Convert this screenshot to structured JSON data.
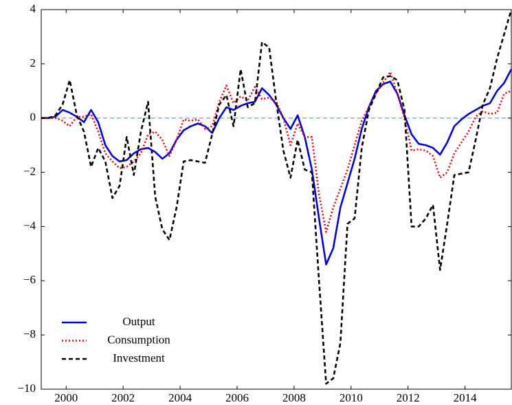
{
  "chart_data": {
    "type": "line",
    "x": [
      1999.125,
      1999.375,
      1999.625,
      1999.875,
      2000.125,
      2000.375,
      2000.625,
      2000.875,
      2001.125,
      2001.375,
      2001.625,
      2001.875,
      2002.125,
      2002.375,
      2002.625,
      2002.875,
      2003.125,
      2003.375,
      2003.625,
      2003.875,
      2004.125,
      2004.375,
      2004.625,
      2004.875,
      2005.125,
      2005.375,
      2005.625,
      2005.875,
      2006.125,
      2006.375,
      2006.625,
      2006.875,
      2007.125,
      2007.375,
      2007.625,
      2007.875,
      2008.125,
      2008.375,
      2008.625,
      2008.875,
      2009.125,
      2009.375,
      2009.625,
      2009.875,
      2010.125,
      2010.375,
      2010.625,
      2010.875,
      2011.125,
      2011.375,
      2011.625,
      2011.875,
      2012.125,
      2012.375,
      2012.625,
      2012.875,
      2013.125,
      2013.375,
      2013.625,
      2013.875,
      2014.125,
      2014.375,
      2014.625,
      2014.875,
      2015.125,
      2015.375,
      2015.625
    ],
    "series": [
      {
        "name": "Output",
        "color": "#0000ee",
        "style": "solid",
        "values": [
          0,
          0,
          0.05,
          0.3,
          0.2,
          0.05,
          -0.15,
          0.3,
          -0.15,
          -1.0,
          -1.4,
          -1.6,
          -1.55,
          -1.3,
          -1.15,
          -1.1,
          -1.25,
          -1.5,
          -1.3,
          -0.8,
          -0.45,
          -0.3,
          -0.2,
          -0.3,
          -0.55,
          0.0,
          0.4,
          0.3,
          0.45,
          0.55,
          0.6,
          1.1,
          0.85,
          0.5,
          0.0,
          -0.4,
          0.1,
          -0.7,
          -1.9,
          -3.7,
          -5.4,
          -4.8,
          -3.3,
          -2.4,
          -1.5,
          -0.4,
          0.4,
          1.0,
          1.25,
          1.35,
          0.9,
          0.1,
          -0.6,
          -0.95,
          -1.0,
          -1.1,
          -1.35,
          -0.9,
          -0.3,
          -0.05,
          0.15,
          0.3,
          0.45,
          0.55,
          1.0,
          1.3,
          1.8
        ]
      },
      {
        "name": "Consumption",
        "color": "#ee0000",
        "style": "dotted",
        "values": [
          0,
          0,
          0,
          -0.1,
          -0.3,
          0.05,
          0.05,
          0.15,
          -0.5,
          -1.3,
          -1.6,
          -1.85,
          -1.8,
          -1.6,
          -1.3,
          -0.6,
          -0.5,
          -0.8,
          -1.4,
          -0.8,
          -0.05,
          -0.1,
          -0.05,
          -0.4,
          -0.3,
          0.6,
          1.2,
          0.55,
          0.8,
          0.65,
          1.15,
          0.7,
          0.75,
          0.6,
          0.0,
          -1.0,
          -0.2,
          -0.7,
          -0.7,
          -2.8,
          -4.2,
          -3.3,
          -2.6,
          -1.9,
          -1.0,
          -0.1,
          0.4,
          0.9,
          1.3,
          1.7,
          0.9,
          0.0,
          -1.2,
          -1.15,
          -1.2,
          -1.4,
          -2.2,
          -2.0,
          -1.3,
          -0.9,
          -0.5,
          0.05,
          0.25,
          0.15,
          0.2,
          0.9,
          1.0
        ]
      },
      {
        "name": "Investment",
        "color": "#000000",
        "style": "dashed",
        "values": [
          0,
          0,
          0.1,
          0.5,
          1.4,
          0.1,
          -0.5,
          -1.8,
          -1.1,
          -1.6,
          -2.95,
          -2.5,
          -0.7,
          -2.1,
          -0.5,
          0.6,
          -2.9,
          -4.1,
          -4.5,
          -3.3,
          -1.6,
          -1.55,
          -1.6,
          -1.65,
          -0.6,
          0.5,
          0.85,
          -0.3,
          1.8,
          0.4,
          0.55,
          2.8,
          2.6,
          0.6,
          -1.2,
          -2.2,
          -0.8,
          -1.9,
          -2.0,
          -6.0,
          -9.8,
          -9.6,
          -8.3,
          -3.9,
          -3.7,
          -1.1,
          0.3,
          0.9,
          1.5,
          1.55,
          1.4,
          0.3,
          -4.0,
          -4.0,
          -3.7,
          -3.2,
          -5.6,
          -3.9,
          -2.1,
          -2.05,
          -2.0,
          -0.8,
          0.5,
          1.1,
          2.2,
          3.1,
          4.0
        ]
      }
    ],
    "xlim": [
      1999.125,
      2015.625
    ],
    "ylim": [
      -10,
      4
    ],
    "xticks": [
      2000,
      2002,
      2004,
      2006,
      2008,
      2010,
      2012,
      2014
    ],
    "yticks": [
      {
        "value": -10,
        "label": "−10"
      },
      {
        "value": -8,
        "label": "−8"
      },
      {
        "value": -6,
        "label": "−6"
      },
      {
        "value": -4,
        "label": "−4"
      },
      {
        "value": -2,
        "label": "−2"
      },
      0,
      2,
      4
    ],
    "reference_line": {
      "value": 0,
      "color": "#5fa8c8"
    },
    "legend": "lower left"
  }
}
